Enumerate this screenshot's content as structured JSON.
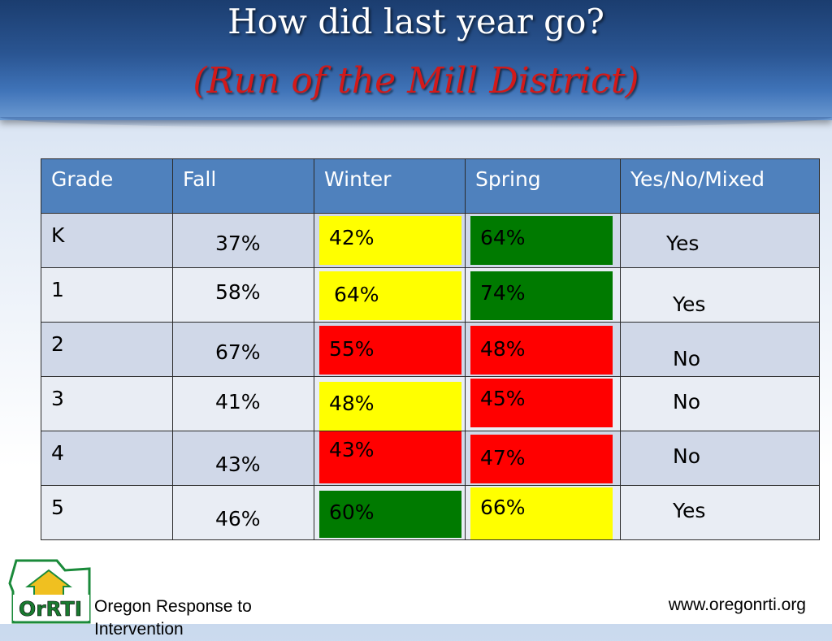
{
  "header": {
    "title": "How did last year go?",
    "subtitle": "(Run of the Mill District)"
  },
  "table": {
    "columns": [
      "Grade",
      "Fall",
      "Winter",
      "Spring",
      "Yes/No/Mixed"
    ],
    "rows": [
      {
        "grade": "K",
        "fall": "37%",
        "winter": "42%",
        "spring": "64%",
        "result": "Yes"
      },
      {
        "grade": "1",
        "fall": "58%",
        "winter": "64%",
        "spring": "74%",
        "result": "Yes"
      },
      {
        "grade": "2",
        "fall": "67%",
        "winter": "55%",
        "spring": "48%",
        "result": "No"
      },
      {
        "grade": "3",
        "fall": "41%",
        "winter": "48%",
        "spring": "45%",
        "result": "No"
      },
      {
        "grade": "4",
        "fall": "43%",
        "winter": "43%",
        "spring": "47%",
        "result": "No"
      },
      {
        "grade": "5",
        "fall": "46%",
        "winter": "60%",
        "spring": "66%",
        "result": "Yes"
      }
    ]
  },
  "colors": {
    "header_blue": "#4f81bd",
    "yellow": "#ffff00",
    "red": "#ff0000",
    "green": "#007a00"
  },
  "footer": {
    "org_name": "Oregon Response to Intervention",
    "url": "www.oregonrti.org",
    "logo_text": "OrRTI"
  }
}
